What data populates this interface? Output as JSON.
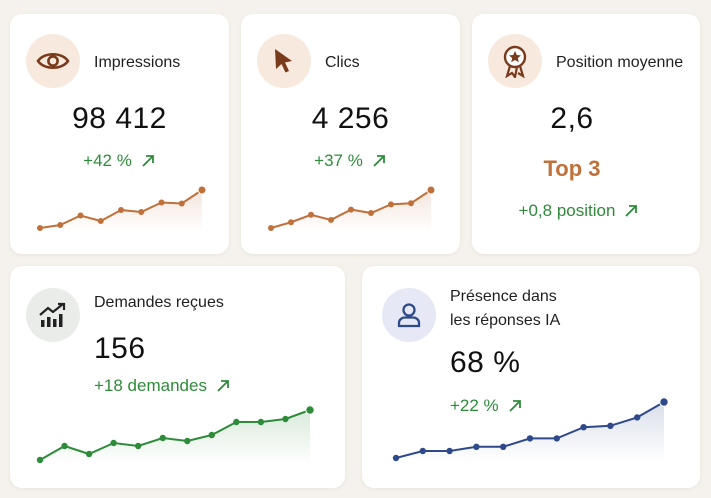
{
  "colors": {
    "orange": "#c0703a",
    "green": "#2e8b3a",
    "blue": "#2f4a8a",
    "peach_bg": "#f8e9df",
    "gray_bg": "#e9ece9",
    "lavender_bg": "#e6e9f5"
  },
  "cards": {
    "impressions": {
      "icon": "eye-icon",
      "title": "Impressions",
      "value": "98 412",
      "delta": "+42 %",
      "trend": [
        1.0,
        1.6,
        3.5,
        2.4,
        4.6,
        4.2,
        6.1,
        5.9,
        8.6
      ]
    },
    "clics": {
      "icon": "cursor-icon",
      "title": "Clics",
      "value": "4 256",
      "delta": "+37 %",
      "trend": [
        1.0,
        2.0,
        3.3,
        2.4,
        4.2,
        3.6,
        5.1,
        5.3,
        7.6
      ]
    },
    "position": {
      "icon": "award-medal-icon",
      "title": "Position moyenne",
      "value": "2,6",
      "rank": "Top 3",
      "delta": "+0,8 position"
    },
    "demandes": {
      "icon": "trending-chart-icon",
      "title": "Demandes reçues",
      "value": "156",
      "delta": "+18 demandes",
      "trend": [
        1.0,
        2.4,
        1.6,
        2.7,
        2.4,
        3.2,
        2.9,
        3.5,
        4.8,
        4.8,
        5.1,
        6.0
      ]
    },
    "ia": {
      "icon": "user-icon",
      "title_line1": "Présence dans",
      "title_line2": "les réponses IA",
      "value": "68 %",
      "delta": "+22 %",
      "trend": [
        1.0,
        1.5,
        1.5,
        1.8,
        1.8,
        2.4,
        2.4,
        3.2,
        3.3,
        3.9,
        5.0
      ]
    }
  }
}
